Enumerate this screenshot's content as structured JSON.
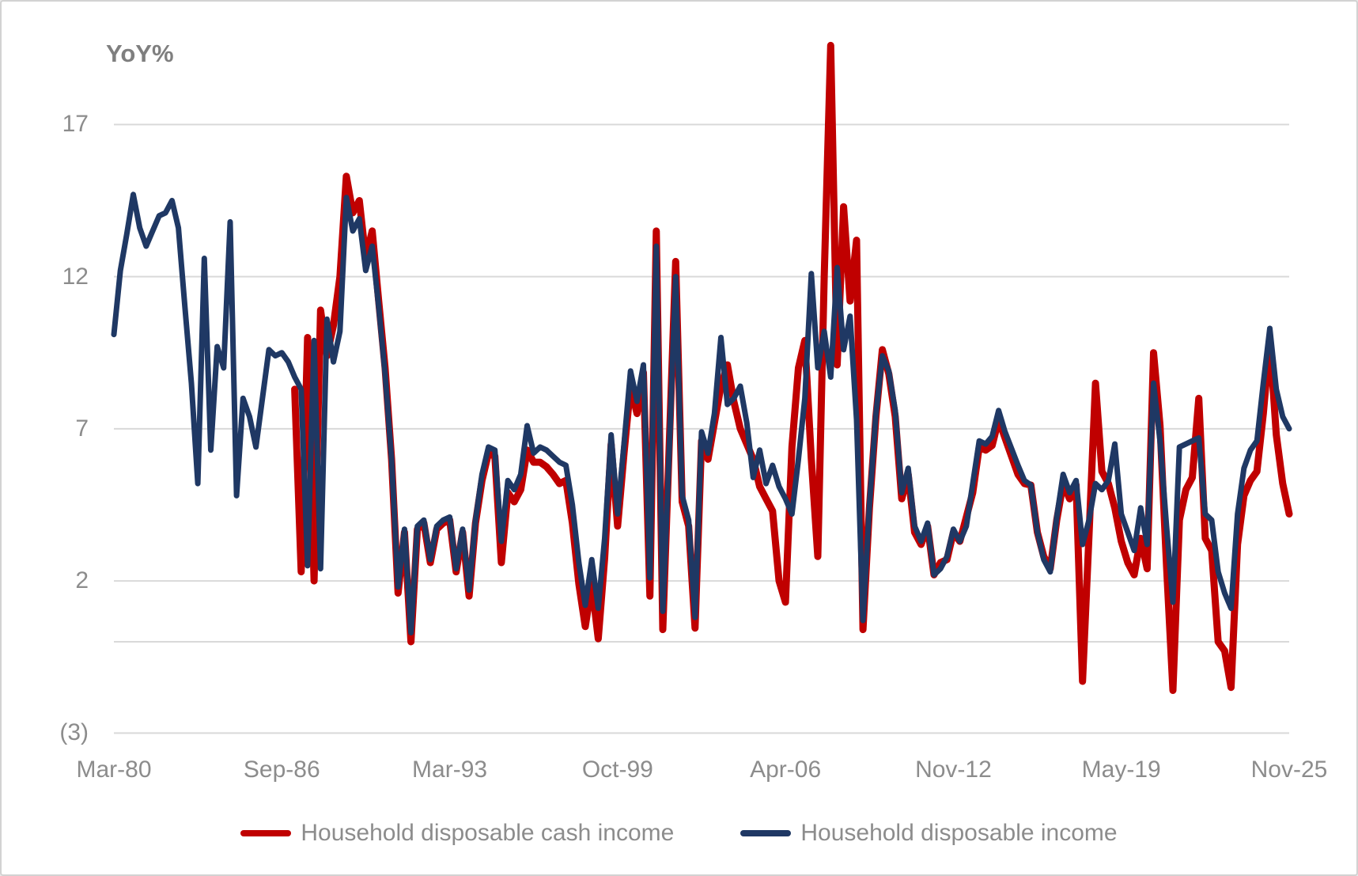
{
  "chart": {
    "y_axis_title": "YoY%",
    "y_ticks": [
      {
        "label": "17",
        "value": 17
      },
      {
        "label": "12",
        "value": 12
      },
      {
        "label": "7",
        "value": 7
      },
      {
        "label": "2",
        "value": 2
      },
      {
        "label": "(3)",
        "value": -3
      }
    ],
    "x_ticks": [
      {
        "label": "Mar-80",
        "t": 1980.0
      },
      {
        "label": "Sep-86",
        "t": 1986.5
      },
      {
        "label": "Mar-93",
        "t": 1993.0
      },
      {
        "label": "Oct-99",
        "t": 1999.5
      },
      {
        "label": "Apr-06",
        "t": 2006.0
      },
      {
        "label": "Nov-12",
        "t": 2012.5
      },
      {
        "label": "May-19",
        "t": 2019.0
      },
      {
        "label": "Nov-25",
        "t": 2025.5
      }
    ]
  },
  "legend": {
    "items": [
      {
        "label": "Household disposable cash income",
        "color": "#C00000"
      },
      {
        "label": "Household disposable income",
        "color": "#1F3864"
      }
    ]
  },
  "chart_data": {
    "type": "line",
    "title": "",
    "xlabel": "",
    "ylabel": "YoY%",
    "ylim": [
      -3,
      17
    ],
    "xlim": [
      1980.0,
      2025.5
    ],
    "grid": true,
    "gridline_values": [
      17,
      12,
      7,
      2,
      -3
    ],
    "zero_axis_value": 0,
    "legend_position": "bottom",
    "x_start": 1980.0,
    "x_step": 0.25,
    "x_unit": "quarter (decimal year)",
    "colors": {
      "grid": "#D9D9D9",
      "tick_text": "#8C8C8C",
      "axis_title": "#7F7F7F"
    },
    "series": [
      {
        "name": "Household disposable cash income",
        "color": "#C00000",
        "start": 1987.0,
        "values": [
          8.3,
          2.3,
          10.0,
          2.0,
          10.9,
          9.4,
          10.4,
          12.0,
          15.3,
          14.1,
          14.5,
          12.6,
          13.5,
          11.2,
          9.0,
          6.0,
          1.6,
          3.6,
          0.0,
          3.7,
          3.9,
          2.6,
          3.7,
          3.9,
          4.0,
          2.3,
          3.6,
          1.5,
          3.9,
          5.3,
          6.2,
          6.1,
          2.6,
          4.9,
          4.6,
          5.0,
          6.3,
          5.9,
          5.9,
          5.75,
          5.5,
          5.2,
          5.3,
          3.9,
          1.9,
          0.5,
          1.9,
          0.1,
          2.75,
          6.5,
          3.8,
          6.2,
          8.4,
          7.5,
          8.85,
          1.5,
          13.5,
          0.4,
          6.5,
          12.5,
          4.6,
          3.8,
          0.45,
          6.6,
          6.0,
          7.2,
          8.4,
          9.1,
          7.9,
          7.0,
          6.5,
          6.0,
          5.1,
          4.7,
          4.3,
          2.0,
          1.3,
          6.4,
          9.0,
          9.9,
          6.0,
          2.8,
          12.0,
          19.6,
          9.1,
          14.3,
          11.2,
          13.2,
          0.4,
          4.4,
          7.4,
          9.6,
          8.8,
          7.4,
          4.7,
          5.5,
          3.6,
          3.2,
          3.8,
          2.2,
          2.6,
          2.7,
          3.6,
          3.3,
          4.1,
          4.9,
          6.4,
          6.3,
          6.45,
          7.3,
          6.7,
          6.1,
          5.5,
          5.2,
          5.15,
          3.6,
          2.8,
          2.4,
          4.0,
          5.2,
          4.7,
          5.15,
          -1.3,
          3.5,
          8.5,
          5.6,
          5.2,
          4.4,
          3.3,
          2.6,
          2.2,
          3.4,
          2.4,
          9.5,
          7.1,
          2.5,
          -1.6,
          4.0,
          5.0,
          5.4,
          8.0,
          3.4,
          3.0,
          0.0,
          -0.3,
          -1.5,
          3.2,
          4.8,
          5.3,
          5.6,
          7.5,
          9.9,
          6.8,
          5.2,
          4.2
        ]
      },
      {
        "name": "Household disposable income",
        "color": "#1F3864",
        "start": 1980.0,
        "values": [
          10.1,
          12.2,
          13.4,
          14.7,
          13.6,
          13.0,
          13.5,
          14.0,
          14.1,
          14.5,
          13.6,
          11.0,
          8.5,
          5.2,
          12.6,
          6.3,
          9.7,
          9.0,
          13.8,
          4.8,
          8.0,
          7.4,
          6.4,
          8.0,
          9.6,
          9.4,
          9.5,
          9.2,
          8.7,
          8.3,
          2.5,
          9.9,
          2.4,
          10.6,
          9.2,
          10.2,
          14.6,
          13.5,
          13.9,
          12.2,
          13.0,
          11.0,
          8.8,
          6.0,
          1.8,
          3.7,
          0.3,
          3.8,
          4.0,
          2.7,
          3.8,
          4.0,
          4.1,
          2.4,
          3.7,
          1.7,
          4.0,
          5.5,
          6.4,
          6.3,
          3.3,
          5.3,
          5.0,
          5.5,
          7.1,
          6.2,
          6.4,
          6.3,
          6.1,
          5.9,
          5.8,
          4.5,
          2.6,
          1.2,
          2.7,
          1.1,
          3.4,
          6.8,
          4.2,
          6.5,
          8.9,
          7.9,
          9.1,
          2.1,
          13.0,
          1.0,
          6.3,
          12.0,
          4.8,
          4.0,
          0.8,
          6.9,
          6.2,
          7.5,
          10.0,
          7.8,
          8.0,
          8.4,
          7.2,
          5.4,
          6.3,
          5.2,
          5.8,
          5.1,
          4.7,
          4.2,
          6.0,
          8.0,
          12.1,
          9.0,
          10.2,
          8.7,
          12.3,
          9.6,
          10.7,
          7.3,
          0.7,
          4.5,
          7.5,
          9.4,
          8.9,
          7.6,
          4.9,
          5.7,
          3.8,
          3.3,
          3.9,
          2.2,
          2.4,
          2.8,
          3.7,
          3.3,
          3.8,
          5.2,
          6.6,
          6.5,
          6.75,
          7.6,
          6.9,
          6.35,
          5.8,
          5.3,
          5.15,
          3.6,
          2.7,
          2.3,
          4.1,
          5.5,
          4.9,
          5.3,
          3.2,
          4.0,
          5.2,
          5.0,
          5.3,
          6.5,
          4.2,
          3.6,
          3.0,
          4.4,
          3.2,
          8.5,
          6.6,
          3.8,
          1.3,
          6.4,
          6.5,
          6.6,
          6.7,
          4.2,
          4.0,
          2.3,
          1.6,
          1.1,
          4.2,
          5.7,
          6.3,
          6.6,
          8.5,
          10.3,
          8.3,
          7.4,
          7.0
        ]
      }
    ]
  }
}
